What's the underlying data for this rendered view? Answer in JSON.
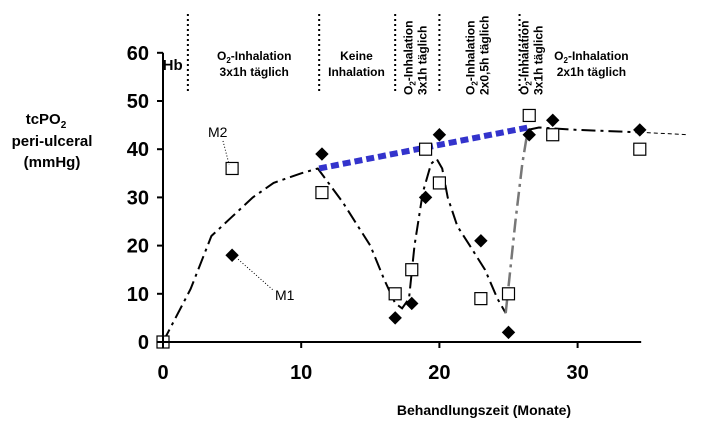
{
  "chart_data": {
    "type": "scatter",
    "xlabel": "Behandlungszeit (Monate)",
    "ylabel_lines": [
      "tcPO",
      "peri-ulceral",
      "(mmHg)"
    ],
    "ylabel_sub": "2",
    "xlim": [
      0,
      38
    ],
    "ylim": [
      0,
      60
    ],
    "xticks": [
      0,
      10,
      20,
      30
    ],
    "yticks": [
      0,
      10,
      20,
      30,
      40,
      50,
      60
    ],
    "phase_boundaries": [
      1.8,
      11.3,
      16.8,
      20.0,
      25.8
    ],
    "phases": [
      {
        "lines": [
          "Hb"
        ],
        "style": "big",
        "x": 0.7
      },
      {
        "lines": [
          "O2-Inhalation",
          "3x1h täglich"
        ],
        "style": "normal",
        "x": 6.6
      },
      {
        "lines": [
          "Keine",
          "Inhalation"
        ],
        "style": "normal",
        "x": 14.0
      },
      {
        "lines": [
          "O2-Inhalation",
          "3x1h täglich"
        ],
        "style": "vertical",
        "x": 18.4
      },
      {
        "lines": [
          "O2-Inhalation",
          "2x0,5h täglich"
        ],
        "style": "vertical",
        "x": 22.9
      },
      {
        "lines": [
          "O2-Inhalation",
          "3x1h täglich"
        ],
        "style": "vertical",
        "x": 26.8
      },
      {
        "lines": [
          "O2-Inhalation",
          "2x1h  täglich"
        ],
        "style": "normal",
        "x": 31.0
      }
    ],
    "series": [
      {
        "name": "M1",
        "marker": "diamond",
        "points": [
          [
            0,
            0
          ],
          [
            5,
            18
          ],
          [
            11.5,
            39
          ],
          [
            16.8,
            5
          ],
          [
            18,
            8
          ],
          [
            19,
            30
          ],
          [
            20,
            43
          ],
          [
            23,
            21
          ],
          [
            25,
            2
          ],
          [
            26.5,
            43
          ],
          [
            28.2,
            46
          ],
          [
            34.5,
            44
          ]
        ]
      },
      {
        "name": "M2",
        "marker": "square",
        "points": [
          [
            0,
            0
          ],
          [
            5,
            36
          ],
          [
            11.5,
            31
          ],
          [
            16.8,
            10
          ],
          [
            18,
            15
          ],
          [
            19,
            40
          ],
          [
            20,
            33
          ],
          [
            23,
            9
          ],
          [
            25,
            10
          ],
          [
            26.5,
            47
          ],
          [
            28.2,
            43
          ],
          [
            34.5,
            40
          ]
        ]
      }
    ],
    "trend_line": [
      [
        0,
        0
      ],
      [
        2,
        11
      ],
      [
        3.5,
        22
      ],
      [
        5,
        26
      ],
      [
        6.5,
        30
      ],
      [
        8,
        33
      ],
      [
        10,
        35
      ],
      [
        11.2,
        36
      ],
      [
        13,
        29
      ],
      [
        15,
        20
      ],
      [
        16,
        13
      ],
      [
        16.8,
        8
      ],
      [
        17.3,
        7
      ],
      [
        17.8,
        9
      ],
      [
        18.2,
        20
      ],
      [
        18.8,
        31
      ],
      [
        19.4,
        37
      ],
      [
        19.8,
        38
      ],
      [
        20.2,
        36
      ],
      [
        20.6,
        30
      ],
      [
        21.3,
        24
      ],
      [
        22.2,
        20
      ],
      [
        23.3,
        15
      ],
      [
        24.2,
        9
      ],
      [
        24.8,
        6
      ],
      [
        25.5,
        25
      ],
      [
        26.0,
        37
      ],
      [
        26.4,
        44
      ],
      [
        27.2,
        44.5
      ],
      [
        30,
        44
      ],
      [
        34.5,
        43.5
      ],
      [
        38,
        43
      ]
    ],
    "blue_trend": [
      [
        11.3,
        36
      ],
      [
        26.4,
        44.5
      ]
    ],
    "colors": {
      "blue_trend": "#3333cc",
      "line": "#000000",
      "gray_line": "#777777"
    }
  }
}
